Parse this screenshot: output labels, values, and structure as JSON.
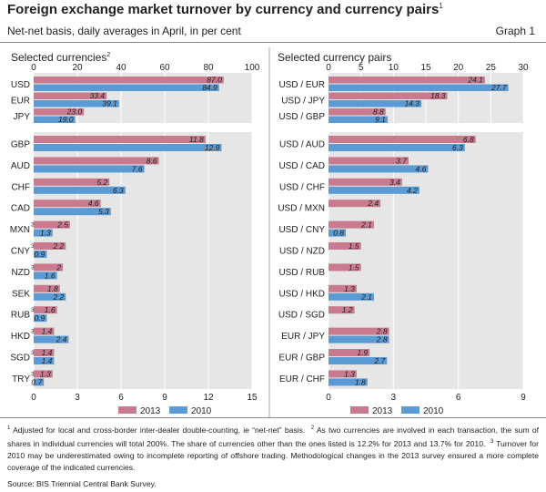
{
  "title": "Foreign exchange market turnover by currency and currency pairs",
  "title_note": "1",
  "subtitle": "Net-net basis, daily averages in April, in per cent",
  "graph_label": "Graph 1",
  "legend": {
    "a": "2013",
    "b": "2010"
  },
  "colors": {
    "series_2013": "#c97a8e",
    "series_2010": "#5b9bd5",
    "panel_bg": "#e6e6e6",
    "grid": "#ffffff"
  },
  "footnotes": {
    "n1": "1",
    "t1": "Adjusted for local and cross-border inter-dealer double-counting, ie “net-net” basis.",
    "n2": "2",
    "t2": "As two currencies are involved in each transaction, the sum of shares in individual currencies will total 200%. The share of currencies other than the ones listed is 12.2% for 2013 and 13.7% for 2010.",
    "n3": "3",
    "t3": "Turnover for 2010 may be underestimated owing to incomplete reporting of offshore trading. Methodological changes in the 2013 survey ensured a more complete coverage of the indicated currencies."
  },
  "source": "Source: BIS Triennial Central Bank Survey.",
  "chart_data": [
    {
      "type": "bar",
      "orientation": "horizontal",
      "panel": "Selected currencies",
      "panel_note": "2",
      "top_axis": {
        "min": 0,
        "max": 100,
        "ticks": [
          0,
          20,
          40,
          60,
          80,
          100
        ]
      },
      "bottom_axis": {
        "min": 0,
        "max": 15,
        "ticks": [
          0,
          3,
          6,
          9,
          12,
          15
        ]
      },
      "top_group": {
        "categories": [
          "USD",
          "EUR",
          "JPY"
        ],
        "series": [
          {
            "name": "2013",
            "values": [
              87.0,
              33.4,
              23.0
            ],
            "labels": [
              "87.0",
              "33.4",
              "23.0"
            ]
          },
          {
            "name": "2010",
            "values": [
              84.9,
              39.1,
              19.0
            ],
            "labels": [
              "84.9",
              "39.1",
              "19.0"
            ]
          }
        ]
      },
      "bottom_group": {
        "categories": [
          "GBP",
          "AUD",
          "CHF",
          "CAD",
          "MXN",
          "CNY",
          "NZD",
          "SEK",
          "RUB",
          "HKD",
          "SGD",
          "TRY"
        ],
        "category_notes": [
          "",
          "",
          "",
          "",
          "3",
          "3",
          "3",
          "",
          "3",
          "3",
          "3",
          "3"
        ],
        "series": [
          {
            "name": "2013",
            "values": [
              11.8,
              8.6,
              5.2,
              4.6,
              2.5,
              2.2,
              2.0,
              1.8,
              1.6,
              1.4,
              1.4,
              1.3
            ],
            "labels": [
              "11.8",
              "8.6",
              "5.2",
              "4.6",
              "2.5",
              "2.2",
              "2",
              "1.8",
              "1.6",
              "1.4",
              "1.4",
              "1.3"
            ]
          },
          {
            "name": "2010",
            "values": [
              12.9,
              7.6,
              6.3,
              5.3,
              1.3,
              0.9,
              1.6,
              2.2,
              0.9,
              2.4,
              1.4,
              0.7
            ],
            "labels": [
              "12.9",
              "7.6",
              "6.3",
              "5.3",
              "1.3",
              "0.9",
              "1.6",
              "2.2",
              "0.9",
              "2.4",
              "1.4",
              "0.7"
            ]
          }
        ]
      }
    },
    {
      "type": "bar",
      "orientation": "horizontal",
      "panel": "Selected currency pairs",
      "panel_note": "",
      "top_axis": {
        "min": 0,
        "max": 30,
        "ticks": [
          0,
          5,
          10,
          15,
          20,
          25,
          30
        ]
      },
      "bottom_axis": {
        "min": 0,
        "max": 9,
        "ticks": [
          0,
          3,
          6,
          9
        ]
      },
      "top_group": {
        "categories": [
          "USD / EUR",
          "USD / JPY",
          "USD / GBP"
        ],
        "series": [
          {
            "name": "2013",
            "values": [
              24.1,
              18.3,
              8.8
            ],
            "labels": [
              "24.1",
              "18.3",
              "8.8"
            ]
          },
          {
            "name": "2010",
            "values": [
              27.7,
              14.3,
              9.1
            ],
            "labels": [
              "27.7",
              "14.3",
              "9.1"
            ]
          }
        ]
      },
      "bottom_group": {
        "categories": [
          "USD / AUD",
          "USD / CAD",
          "USD / CHF",
          "USD / MXN",
          "USD / CNY",
          "USD / NZD",
          "USD / RUB",
          "USD / HKD",
          "USD / SGD",
          "EUR / JPY",
          "EUR / GBP",
          "EUR / CHF"
        ],
        "category_notes": [
          "",
          "",
          "",
          "",
          "",
          "",
          "",
          "",
          "",
          "",
          "",
          ""
        ],
        "series": [
          {
            "name": "2013",
            "values": [
              6.8,
              3.7,
              3.4,
              2.4,
              2.1,
              1.5,
              1.5,
              1.3,
              1.2,
              2.8,
              1.9,
              1.3
            ],
            "labels": [
              "6.8",
              "3.7",
              "3.4",
              "2.4",
              "2.1",
              "1.5",
              "1.5",
              "1.3",
              "1.2",
              "2.8",
              "1.9",
              "1.3"
            ]
          },
          {
            "name": "2010",
            "values": [
              6.3,
              4.6,
              4.2,
              null,
              0.8,
              null,
              null,
              2.1,
              null,
              2.8,
              2.7,
              1.8
            ],
            "labels": [
              "6.3",
              "4.6",
              "4.2",
              "",
              "0.8",
              "",
              "",
              "2.1",
              "",
              "2.8",
              "2.7",
              "1.8"
            ]
          }
        ]
      }
    }
  ]
}
